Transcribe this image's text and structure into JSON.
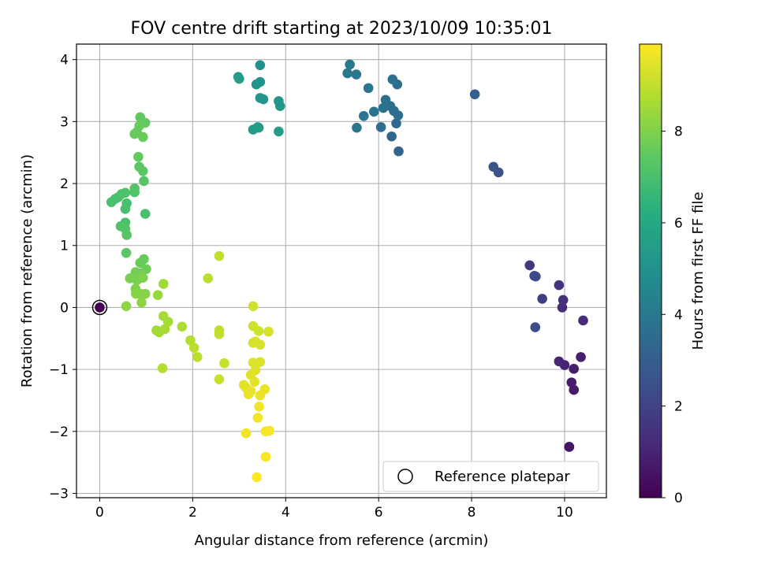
{
  "chart_data": {
    "type": "scatter",
    "title": "FOV centre drift starting at 2023/10/09 10:35:01",
    "xlabel": "Angular distance from reference (arcmin)",
    "ylabel": "Rotation from reference (arcmin)",
    "xlim": [
      -0.5,
      10.9
    ],
    "ylim": [
      -3.07,
      4.25
    ],
    "xticks": [
      0,
      2,
      4,
      6,
      8,
      10
    ],
    "yticks": [
      -3,
      -2,
      -1,
      0,
      1,
      2,
      3,
      4
    ],
    "xtick_labels": [
      "0",
      "2",
      "4",
      "6",
      "8",
      "10"
    ],
    "ytick_labels": [
      "−3",
      "−2",
      "−1",
      "0",
      "1",
      "2",
      "3",
      "4"
    ],
    "grid": true,
    "legend": {
      "position": "lower-right",
      "entries": [
        "Reference platepar"
      ]
    },
    "reference_point": {
      "x": 0,
      "y": 0,
      "label": "Reference platepar"
    },
    "colorbar": {
      "label": "Hours from first FF file",
      "colormap": "viridis",
      "range": [
        0,
        9.9
      ],
      "ticks": [
        0,
        2,
        4,
        6,
        8
      ],
      "tick_labels": [
        "0",
        "2",
        "4",
        "6",
        "8"
      ]
    },
    "colormap_stops": [
      "#440154",
      "#472c7a",
      "#3b518b",
      "#2c718e",
      "#21908d",
      "#27ad81",
      "#5cc863",
      "#aadc32",
      "#fde725"
    ],
    "points": [
      {
        "x": 0.0,
        "y": 0.0,
        "t": 0.0
      },
      {
        "x": 10.1,
        "y": -2.25,
        "t": 0.5
      },
      {
        "x": 10.1,
        "y": -2.25,
        "t": 0.55
      },
      {
        "x": 10.2,
        "y": -1.33,
        "t": 0.7
      },
      {
        "x": 10.15,
        "y": -1.21,
        "t": 0.75
      },
      {
        "x": 10.2,
        "y": -0.99,
        "t": 0.8
      },
      {
        "x": 10.35,
        "y": -0.8,
        "t": 0.85
      },
      {
        "x": 10.0,
        "y": -0.93,
        "t": 1.0
      },
      {
        "x": 9.88,
        "y": -0.87,
        "t": 1.1
      },
      {
        "x": 10.4,
        "y": -0.21,
        "t": 1.2
      },
      {
        "x": 9.95,
        "y": 0.0,
        "t": 1.3
      },
      {
        "x": 9.97,
        "y": 0.12,
        "t": 1.4
      },
      {
        "x": 9.88,
        "y": 0.36,
        "t": 1.5
      },
      {
        "x": 9.25,
        "y": 0.68,
        "t": 1.6
      },
      {
        "x": 9.35,
        "y": 0.51,
        "t": 2.1
      },
      {
        "x": 9.38,
        "y": 0.5,
        "t": 2.2
      },
      {
        "x": 9.52,
        "y": 0.14,
        "t": 1.8
      },
      {
        "x": 9.37,
        "y": -0.32,
        "t": 2.3
      },
      {
        "x": 8.58,
        "y": 2.18,
        "t": 2.5
      },
      {
        "x": 8.47,
        "y": 2.27,
        "t": 2.55
      },
      {
        "x": 8.07,
        "y": 3.44,
        "t": 3.0
      },
      {
        "x": 6.43,
        "y": 2.52,
        "t": 3.2
      },
      {
        "x": 6.28,
        "y": 2.76,
        "t": 3.3
      },
      {
        "x": 6.38,
        "y": 2.97,
        "t": 3.4
      },
      {
        "x": 6.05,
        "y": 2.91,
        "t": 3.5
      },
      {
        "x": 6.42,
        "y": 3.1,
        "t": 3.5
      },
      {
        "x": 6.33,
        "y": 3.17,
        "t": 3.6
      },
      {
        "x": 6.25,
        "y": 3.25,
        "t": 3.6
      },
      {
        "x": 6.15,
        "y": 3.35,
        "t": 3.7
      },
      {
        "x": 6.1,
        "y": 3.22,
        "t": 3.7
      },
      {
        "x": 5.9,
        "y": 3.16,
        "t": 3.8
      },
      {
        "x": 5.68,
        "y": 3.09,
        "t": 3.9
      },
      {
        "x": 5.53,
        "y": 2.9,
        "t": 4.0
      },
      {
        "x": 5.78,
        "y": 3.54,
        "t": 3.8
      },
      {
        "x": 6.4,
        "y": 3.6,
        "t": 3.6
      },
      {
        "x": 6.3,
        "y": 3.68,
        "t": 3.7
      },
      {
        "x": 5.52,
        "y": 3.76,
        "t": 3.9
      },
      {
        "x": 5.33,
        "y": 3.78,
        "t": 4.0
      },
      {
        "x": 5.38,
        "y": 3.92,
        "t": 4.0
      },
      {
        "x": 3.45,
        "y": 3.91,
        "t": 5.0
      },
      {
        "x": 3.45,
        "y": 3.64,
        "t": 5.1
      },
      {
        "x": 3.37,
        "y": 3.6,
        "t": 5.1
      },
      {
        "x": 2.98,
        "y": 3.72,
        "t": 5.4
      },
      {
        "x": 3.0,
        "y": 3.69,
        "t": 5.5
      },
      {
        "x": 3.45,
        "y": 3.38,
        "t": 5.2
      },
      {
        "x": 3.52,
        "y": 3.36,
        "t": 5.2
      },
      {
        "x": 3.85,
        "y": 3.33,
        "t": 5.3
      },
      {
        "x": 3.88,
        "y": 3.25,
        "t": 5.3
      },
      {
        "x": 3.42,
        "y": 2.9,
        "t": 5.4
      },
      {
        "x": 3.3,
        "y": 2.87,
        "t": 5.4
      },
      {
        "x": 3.4,
        "y": 2.91,
        "t": 5.5
      },
      {
        "x": 3.85,
        "y": 2.84,
        "t": 5.5
      },
      {
        "x": 0.98,
        "y": 2.98,
        "t": 7.5
      },
      {
        "x": 0.87,
        "y": 3.07,
        "t": 7.5
      },
      {
        "x": 0.85,
        "y": 2.93,
        "t": 7.6
      },
      {
        "x": 0.8,
        "y": 2.83,
        "t": 7.6
      },
      {
        "x": 0.75,
        "y": 2.8,
        "t": 7.6
      },
      {
        "x": 0.93,
        "y": 2.75,
        "t": 7.6
      },
      {
        "x": 0.83,
        "y": 2.43,
        "t": 7.5
      },
      {
        "x": 0.85,
        "y": 2.27,
        "t": 7.4
      },
      {
        "x": 0.93,
        "y": 2.2,
        "t": 7.4
      },
      {
        "x": 0.95,
        "y": 2.04,
        "t": 7.3
      },
      {
        "x": 0.75,
        "y": 1.92,
        "t": 7.2
      },
      {
        "x": 0.75,
        "y": 1.86,
        "t": 7.2
      },
      {
        "x": 0.55,
        "y": 1.85,
        "t": 7.1
      },
      {
        "x": 0.47,
        "y": 1.83,
        "t": 7.1
      },
      {
        "x": 0.4,
        "y": 1.78,
        "t": 7.1
      },
      {
        "x": 0.33,
        "y": 1.75,
        "t": 7.0
      },
      {
        "x": 0.25,
        "y": 1.7,
        "t": 7.0
      },
      {
        "x": 0.58,
        "y": 1.68,
        "t": 7.0
      },
      {
        "x": 0.55,
        "y": 1.59,
        "t": 7.0
      },
      {
        "x": 0.98,
        "y": 1.51,
        "t": 7.0
      },
      {
        "x": 0.55,
        "y": 1.37,
        "t": 7.0
      },
      {
        "x": 0.45,
        "y": 1.31,
        "t": 7.2
      },
      {
        "x": 0.55,
        "y": 1.27,
        "t": 7.2
      },
      {
        "x": 0.58,
        "y": 1.17,
        "t": 7.3
      },
      {
        "x": 0.57,
        "y": 0.88,
        "t": 7.4
      },
      {
        "x": 0.95,
        "y": 0.78,
        "t": 7.6
      },
      {
        "x": 0.87,
        "y": 0.72,
        "t": 7.6
      },
      {
        "x": 1.0,
        "y": 0.62,
        "t": 7.7
      },
      {
        "x": 0.77,
        "y": 0.57,
        "t": 7.8
      },
      {
        "x": 0.87,
        "y": 0.55,
        "t": 7.8
      },
      {
        "x": 0.65,
        "y": 0.47,
        "t": 7.9
      },
      {
        "x": 0.8,
        "y": 0.44,
        "t": 7.9
      },
      {
        "x": 0.93,
        "y": 0.48,
        "t": 8.0
      },
      {
        "x": 0.77,
        "y": 0.3,
        "t": 8.0
      },
      {
        "x": 0.78,
        "y": 0.22,
        "t": 8.1
      },
      {
        "x": 0.88,
        "y": 0.22,
        "t": 8.1
      },
      {
        "x": 0.98,
        "y": 0.22,
        "t": 8.1
      },
      {
        "x": 0.9,
        "y": 0.08,
        "t": 8.2
      },
      {
        "x": 0.57,
        "y": 0.02,
        "t": 8.2
      },
      {
        "x": 1.37,
        "y": 0.38,
        "t": 8.5
      },
      {
        "x": 1.25,
        "y": 0.2,
        "t": 8.4
      },
      {
        "x": 1.22,
        "y": -0.37,
        "t": 8.5
      },
      {
        "x": 1.28,
        "y": -0.4,
        "t": 8.5
      },
      {
        "x": 1.4,
        "y": -0.35,
        "t": 8.6
      },
      {
        "x": 1.47,
        "y": -0.23,
        "t": 8.6
      },
      {
        "x": 1.37,
        "y": -0.14,
        "t": 8.6
      },
      {
        "x": 1.77,
        "y": -0.31,
        "t": 8.7
      },
      {
        "x": 1.35,
        "y": -0.98,
        "t": 8.8
      },
      {
        "x": 1.95,
        "y": -0.53,
        "t": 8.8
      },
      {
        "x": 2.03,
        "y": -0.65,
        "t": 8.9
      },
      {
        "x": 2.1,
        "y": -0.8,
        "t": 8.9
      },
      {
        "x": 2.33,
        "y": 0.47,
        "t": 8.9
      },
      {
        "x": 2.57,
        "y": 0.83,
        "t": 9.0
      },
      {
        "x": 2.57,
        "y": -0.37,
        "t": 9.0
      },
      {
        "x": 2.57,
        "y": -0.43,
        "t": 9.0
      },
      {
        "x": 2.68,
        "y": -0.9,
        "t": 9.1
      },
      {
        "x": 2.57,
        "y": -1.16,
        "t": 9.1
      },
      {
        "x": 3.3,
        "y": 0.02,
        "t": 9.2
      },
      {
        "x": 3.3,
        "y": -0.3,
        "t": 9.2
      },
      {
        "x": 3.42,
        "y": -0.38,
        "t": 9.2
      },
      {
        "x": 3.63,
        "y": -0.39,
        "t": 9.3
      },
      {
        "x": 3.35,
        "y": -0.55,
        "t": 9.3
      },
      {
        "x": 3.3,
        "y": -0.57,
        "t": 9.3
      },
      {
        "x": 3.45,
        "y": -0.6,
        "t": 9.3
      },
      {
        "x": 3.3,
        "y": -0.89,
        "t": 9.4
      },
      {
        "x": 3.45,
        "y": -0.88,
        "t": 9.4
      },
      {
        "x": 3.35,
        "y": -1.01,
        "t": 9.4
      },
      {
        "x": 3.25,
        "y": -1.09,
        "t": 9.5
      },
      {
        "x": 3.33,
        "y": -1.2,
        "t": 9.5
      },
      {
        "x": 3.1,
        "y": -1.25,
        "t": 9.5
      },
      {
        "x": 3.15,
        "y": -1.3,
        "t": 9.5
      },
      {
        "x": 3.25,
        "y": -1.35,
        "t": 9.6
      },
      {
        "x": 3.2,
        "y": -1.4,
        "t": 9.6
      },
      {
        "x": 3.45,
        "y": -1.42,
        "t": 9.6
      },
      {
        "x": 3.55,
        "y": -1.32,
        "t": 9.6
      },
      {
        "x": 3.43,
        "y": -1.6,
        "t": 9.7
      },
      {
        "x": 3.4,
        "y": -1.78,
        "t": 9.7
      },
      {
        "x": 3.15,
        "y": -2.03,
        "t": 9.7
      },
      {
        "x": 3.57,
        "y": -2.0,
        "t": 9.8
      },
      {
        "x": 3.65,
        "y": -1.99,
        "t": 9.8
      },
      {
        "x": 3.57,
        "y": -2.41,
        "t": 9.8
      },
      {
        "x": 3.38,
        "y": -2.74,
        "t": 9.9
      }
    ]
  }
}
